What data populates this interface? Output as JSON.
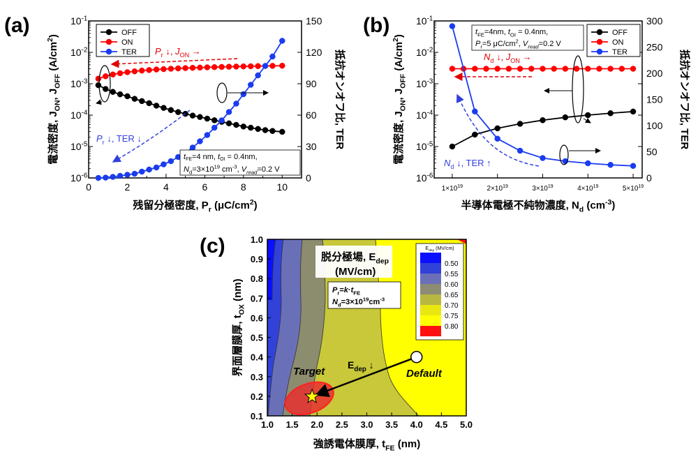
{
  "chart_data": [
    {
      "panel_label": "(a)",
      "type": "line",
      "xlabel": "残留分極密度, Pr (μC/cm2)",
      "ylabel_left": "電流密度, JON, JOFF (A/cm2)",
      "ylabel_right": "抵抗オンオフ比, TER",
      "xlim": [
        0,
        11
      ],
      "xticks": [
        0,
        2,
        4,
        6,
        8,
        10
      ],
      "ylim_left": [
        1e-06,
        0.1
      ],
      "yscale_left": "log",
      "yticks_left": [
        "10-6",
        "10-5",
        "10-4",
        "10-3",
        "10-2",
        "10-1"
      ],
      "ylim_right": [
        0,
        150
      ],
      "yticks_right": [
        0,
        30,
        60,
        90,
        120,
        150
      ],
      "legend": [
        "OFF",
        "ON",
        "TER"
      ],
      "annotations": {
        "red_arrow": "Pr ↓, JON →",
        "blue_arrow": "Pr ↓, TER ↓",
        "conditions": [
          "tFE=4 nm, tOI = 0.4nm,",
          "Nd=3×1019 cm-3, Vread=0.2 V"
        ]
      },
      "series": [
        {
          "name": "OFF",
          "color": "#000000",
          "axis": "left",
          "x": [
            0.5,
            0.875,
            1.25,
            1.625,
            2.0,
            2.375,
            2.75,
            3.125,
            3.5,
            3.875,
            4.25,
            4.625,
            5.0,
            5.375,
            5.75,
            6.125,
            6.5,
            6.875,
            7.25,
            7.625,
            8.0,
            8.375,
            8.75,
            9.125,
            9.5,
            10.0
          ],
          "y": [
            0.0009,
            0.00068,
            0.00055,
            0.00046,
            0.0004,
            0.00033,
            0.00028,
            0.00024,
            0.0002,
            0.00017,
            0.000145,
            0.000125,
            0.00011,
            9.67e-05,
            8.72e-05,
            7.74e-05,
            6.87e-05,
            6.12e-05,
            5.47e-05,
            4.89e-05,
            4.34e-05,
            3.97e-05,
            3.63e-05,
            3.33e-05,
            3.13e-05,
            2.94e-05
          ]
        },
        {
          "name": "ON",
          "color": "#ff0000",
          "axis": "left",
          "x": [
            0.5,
            0.875,
            1.25,
            1.625,
            2.0,
            2.375,
            2.75,
            3.125,
            3.5,
            3.875,
            4.25,
            4.625,
            5.0,
            5.375,
            5.75,
            6.125,
            6.5,
            6.875,
            7.25,
            7.625,
            8.0,
            8.375,
            8.75,
            9.125,
            9.5,
            10.0
          ],
          "y": [
            0.00145,
            0.00173,
            0.00197,
            0.00216,
            0.00233,
            0.00248,
            0.00262,
            0.00273,
            0.00284,
            0.00292,
            0.003,
            0.00308,
            0.00315,
            0.00321,
            0.00327,
            0.00333,
            0.00338,
            0.00343,
            0.00348,
            0.00352,
            0.00356,
            0.0036,
            0.00364,
            0.00368,
            0.00371,
            0.00375
          ]
        },
        {
          "name": "TER",
          "color": "#1a3cf0",
          "axis": "right",
          "x": [
            0.5,
            0.875,
            1.25,
            1.625,
            2.0,
            2.375,
            2.75,
            3.125,
            3.5,
            3.875,
            4.25,
            4.625,
            5.0,
            5.375,
            5.75,
            6.125,
            6.5,
            6.875,
            7.25,
            7.625,
            8.0,
            8.375,
            8.75,
            9.125,
            9.5,
            10.0
          ],
          "y": [
            0,
            0.3,
            1,
            2,
            3,
            4,
            6,
            8,
            10,
            13,
            16,
            20,
            24,
            29,
            35,
            41,
            48,
            55,
            63,
            71,
            80,
            89,
            98,
            107,
            116,
            131
          ]
        }
      ]
    },
    {
      "panel_label": "(b)",
      "type": "line",
      "xlabel": "半導体電極不純物濃度, Nd (cm-3)",
      "ylabel_left": "電流密度, JON, JOFF (A/cm2)",
      "ylabel_right": "抵抗オンオフ比, TER",
      "xlim": [
        0.6,
        5.2
      ],
      "xunit_note": "×10^19",
      "xticks": [
        "1×1019",
        "2×1019",
        "3×1019",
        "4×1019",
        "5×1019"
      ],
      "ylim_left": [
        1e-06,
        0.1
      ],
      "yscale_left": "log",
      "yticks_left": [
        "10-6",
        "10-5",
        "10-4",
        "10-3",
        "10-2",
        "10-1"
      ],
      "ylim_right": [
        0,
        300
      ],
      "yticks_right": [
        0,
        50,
        100,
        150,
        200,
        250,
        300
      ],
      "legend": [
        "OFF",
        "ON",
        "TER"
      ],
      "annotations": {
        "red_arrow": "Nd ↓, JON →",
        "blue_arrow": "Nd ↓, TER ↑",
        "conditions": [
          "tFE=4nm, tOI = 0.4nm,",
          "Pr=5 μC/cm2, Vread=0.2 V"
        ]
      },
      "series": [
        {
          "name": "OFF",
          "color": "#000000",
          "axis": "left",
          "x": [
            1.0,
            1.5,
            2.0,
            2.5,
            3.0,
            3.5,
            4.0,
            4.5,
            5.0
          ],
          "y": [
            1e-05,
            2.4e-05,
            3.8e-05,
            5.3e-05,
            6.9e-05,
            8.5e-05,
            0.0001,
            0.000115,
            0.00013
          ]
        },
        {
          "name": "ON",
          "color": "#ff0000",
          "axis": "left",
          "x": [
            1.0,
            1.25,
            1.5,
            1.75,
            2.0,
            2.25,
            2.5,
            2.75,
            3.0,
            3.25,
            3.5,
            3.75,
            4.0,
            4.25,
            4.5,
            4.75,
            5.0
          ],
          "y": [
            0.003,
            0.003,
            0.003,
            0.003,
            0.003,
            0.003,
            0.003,
            0.003,
            0.003,
            0.003,
            0.003,
            0.003,
            0.003,
            0.003,
            0.003,
            0.003,
            0.003
          ]
        },
        {
          "name": "TER",
          "color": "#1a3cf0",
          "axis": "right",
          "x": [
            1.0,
            1.5,
            2.0,
            2.5,
            3.0,
            3.5,
            4.0,
            4.5,
            5.0
          ],
          "y": [
            290,
            127,
            75,
            52,
            38,
            32,
            28,
            25,
            23
          ]
        }
      ]
    },
    {
      "panel_label": "(c)",
      "type": "heatmap",
      "title": "脱分極場, Edep (MV/cm)",
      "xlabel": "強誘電体膜厚, tFE (nm)",
      "ylabel": "界面層膜厚, tOX (nm)",
      "xlim": [
        1.0,
        5.0
      ],
      "ylim": [
        0.1,
        1.0
      ],
      "xticks": [
        "1.0",
        "1.5",
        "2.0",
        "2.5",
        "3.0",
        "3.5",
        "4.0",
        "4.5",
        "5.0"
      ],
      "yticks": [
        "0.1",
        "0.2",
        "0.3",
        "0.4",
        "0.5",
        "0.6",
        "0.7",
        "0.8",
        "0.9",
        "1.0"
      ],
      "colorbar": {
        "title": "Edep (MV/cm)",
        "levels": [
          "0.50",
          "0.55",
          "0.60",
          "0.65",
          "0.70",
          "0.75",
          "0.80"
        ],
        "colors": [
          "#0a10ff",
          "#3242d8",
          "#6a70b8",
          "#8c8c74",
          "#b8b840",
          "#e8e810",
          "#ffff00",
          "#ff1010"
        ]
      },
      "annotations": {
        "conditions": [
          "Pr=k·tFE",
          "Nd=3×1019cm-3"
        ],
        "target_label": "Target",
        "default_label": "Default",
        "arrow_label": "Edep ↓",
        "target_point": [
          1.9,
          0.2
        ],
        "default_point": [
          4.0,
          0.4
        ]
      }
    }
  ]
}
